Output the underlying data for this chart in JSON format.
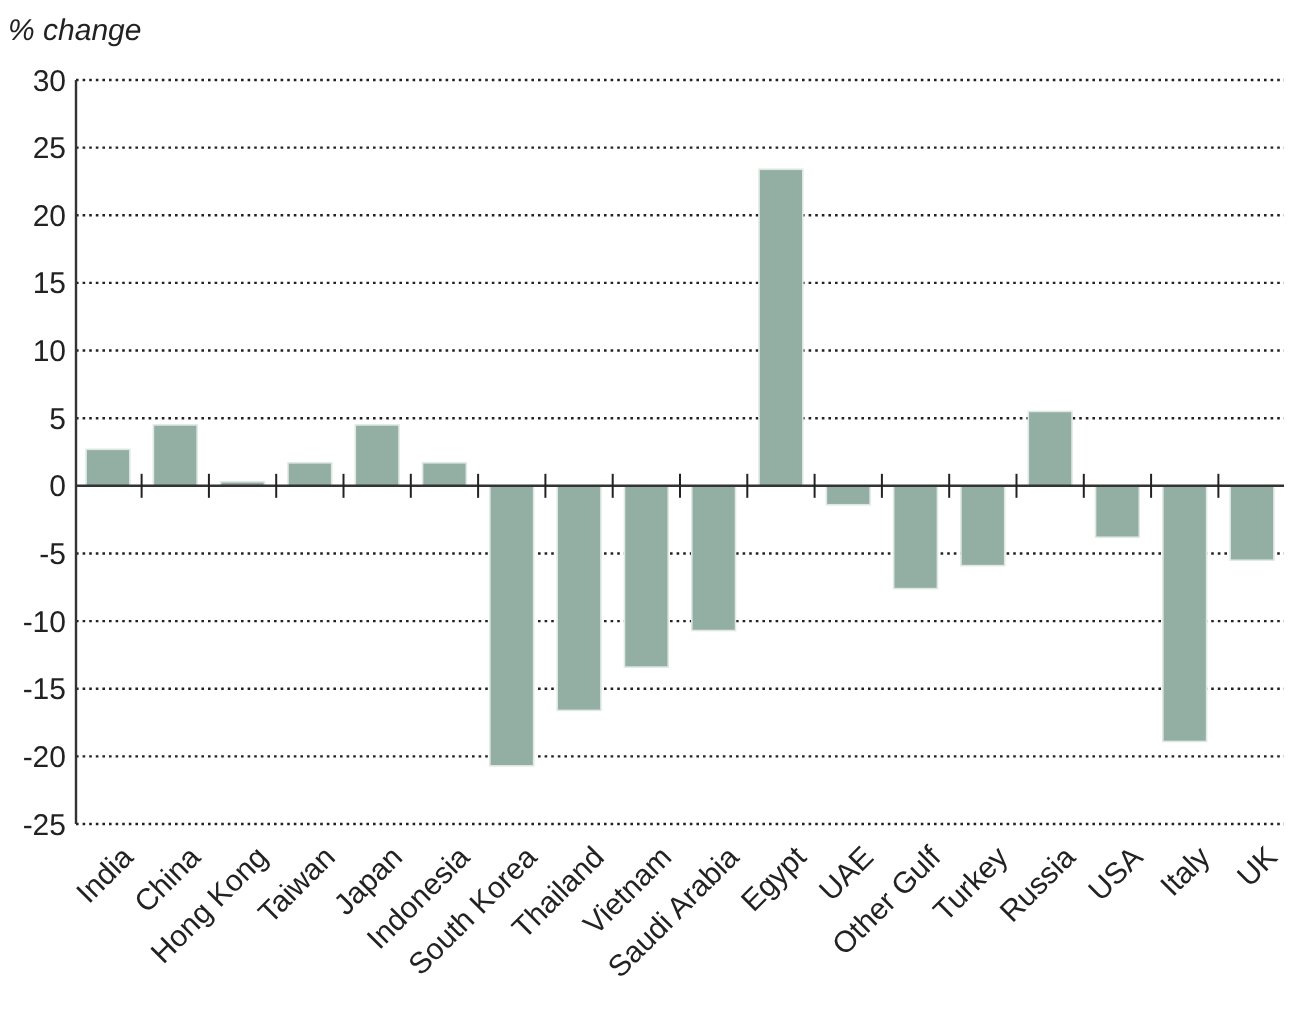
{
  "chart_data": {
    "type": "bar",
    "ylabel": "% change",
    "categories": [
      "India",
      "China",
      "Hong Kong",
      "Taiwan",
      "Japan",
      "Indonesia",
      "South Korea",
      "Thailand",
      "Vietnam",
      "Saudi Arabia",
      "Egypt",
      "UAE",
      "Other Gulf",
      "Turkey",
      "Russia",
      "USA",
      "Italy",
      "UK"
    ],
    "values": [
      2.7,
      4.5,
      0.3,
      1.7,
      4.5,
      1.7,
      -20.7,
      -16.6,
      -13.4,
      -10.7,
      23.4,
      -1.4,
      -7.6,
      -5.9,
      5.5,
      -3.8,
      -18.9,
      -5.5
    ],
    "color": "#93afa3",
    "ylim": [
      -25,
      30
    ],
    "yticks": [
      -25,
      -20,
      -15,
      -10,
      -5,
      0,
      5,
      10,
      15,
      20,
      25,
      30
    ],
    "grid": "y"
  }
}
